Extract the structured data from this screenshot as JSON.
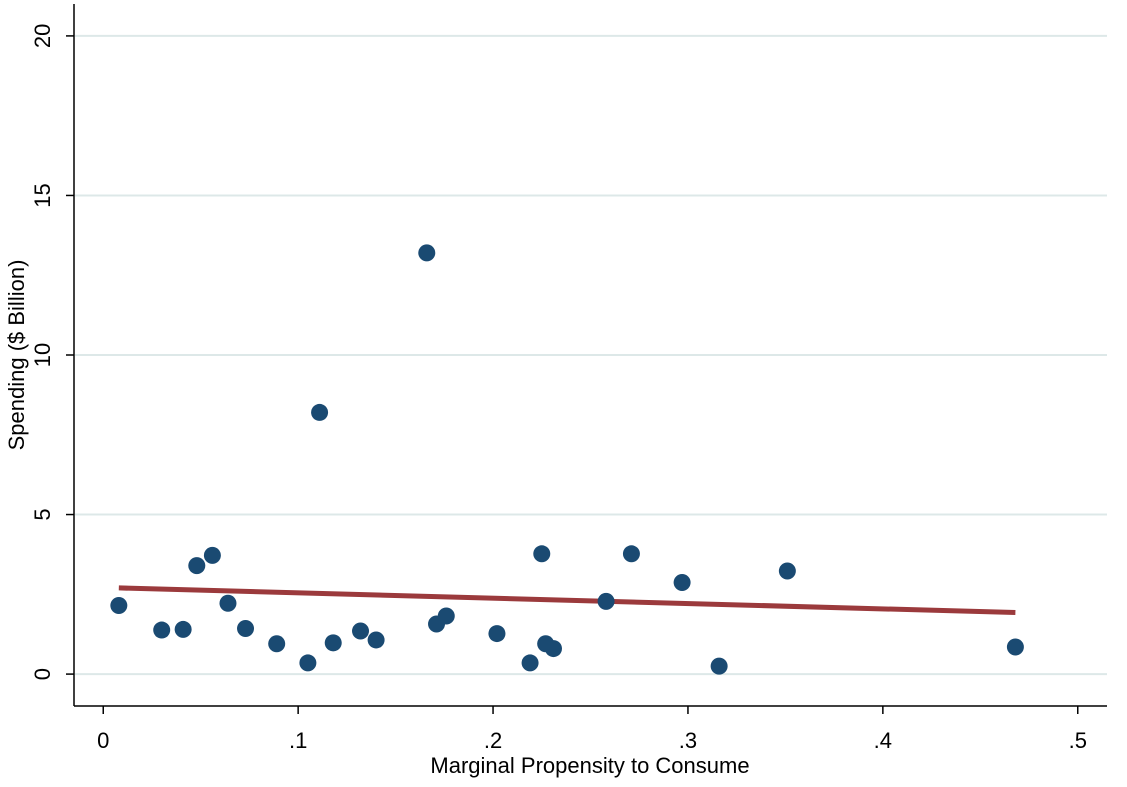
{
  "chart_data": {
    "type": "scatter",
    "title": "",
    "xlabel": "Marginal Propensity to Consume",
    "ylabel": "Spending ($ Billion)",
    "xlim": [
      -0.015,
      0.515
    ],
    "ylim": [
      -1,
      21
    ],
    "x_ticks": [
      0,
      0.1,
      0.2,
      0.3,
      0.4,
      0.5
    ],
    "x_tick_labels": [
      "0",
      ".1",
      ".2",
      ".3",
      ".4",
      ".5"
    ],
    "y_ticks": [
      0,
      5,
      10,
      15,
      20
    ],
    "y_tick_labels": [
      "0",
      "5",
      "10",
      "15",
      "20"
    ],
    "grid": "horizontal",
    "legend": "none",
    "colors": {
      "points": "#1a4a72",
      "fit_line": "#9b3a3c",
      "grid": "#dde8e8",
      "axis": "#000000"
    },
    "series": [
      {
        "type": "scatter",
        "points": [
          {
            "x": 0.008,
            "y": 2.15
          },
          {
            "x": 0.03,
            "y": 1.38
          },
          {
            "x": 0.041,
            "y": 1.4
          },
          {
            "x": 0.048,
            "y": 3.4
          },
          {
            "x": 0.056,
            "y": 3.72
          },
          {
            "x": 0.064,
            "y": 2.22
          },
          {
            "x": 0.073,
            "y": 1.43
          },
          {
            "x": 0.089,
            "y": 0.95
          },
          {
            "x": 0.105,
            "y": 0.35
          },
          {
            "x": 0.111,
            "y": 8.2
          },
          {
            "x": 0.118,
            "y": 0.98
          },
          {
            "x": 0.132,
            "y": 1.35
          },
          {
            "x": 0.14,
            "y": 1.07
          },
          {
            "x": 0.166,
            "y": 13.2
          },
          {
            "x": 0.171,
            "y": 1.57
          },
          {
            "x": 0.176,
            "y": 1.82
          },
          {
            "x": 0.202,
            "y": 1.27
          },
          {
            "x": 0.219,
            "y": 0.35
          },
          {
            "x": 0.225,
            "y": 3.77
          },
          {
            "x": 0.227,
            "y": 0.95
          },
          {
            "x": 0.231,
            "y": 0.8
          },
          {
            "x": 0.258,
            "y": 2.28
          },
          {
            "x": 0.271,
            "y": 3.77
          },
          {
            "x": 0.297,
            "y": 2.87
          },
          {
            "x": 0.316,
            "y": 0.25
          },
          {
            "x": 0.351,
            "y": 3.23
          },
          {
            "x": 0.468,
            "y": 0.85
          }
        ]
      },
      {
        "type": "line",
        "points": [
          {
            "x": 0.008,
            "y": 2.7
          },
          {
            "x": 0.468,
            "y": 1.93
          }
        ]
      }
    ]
  }
}
